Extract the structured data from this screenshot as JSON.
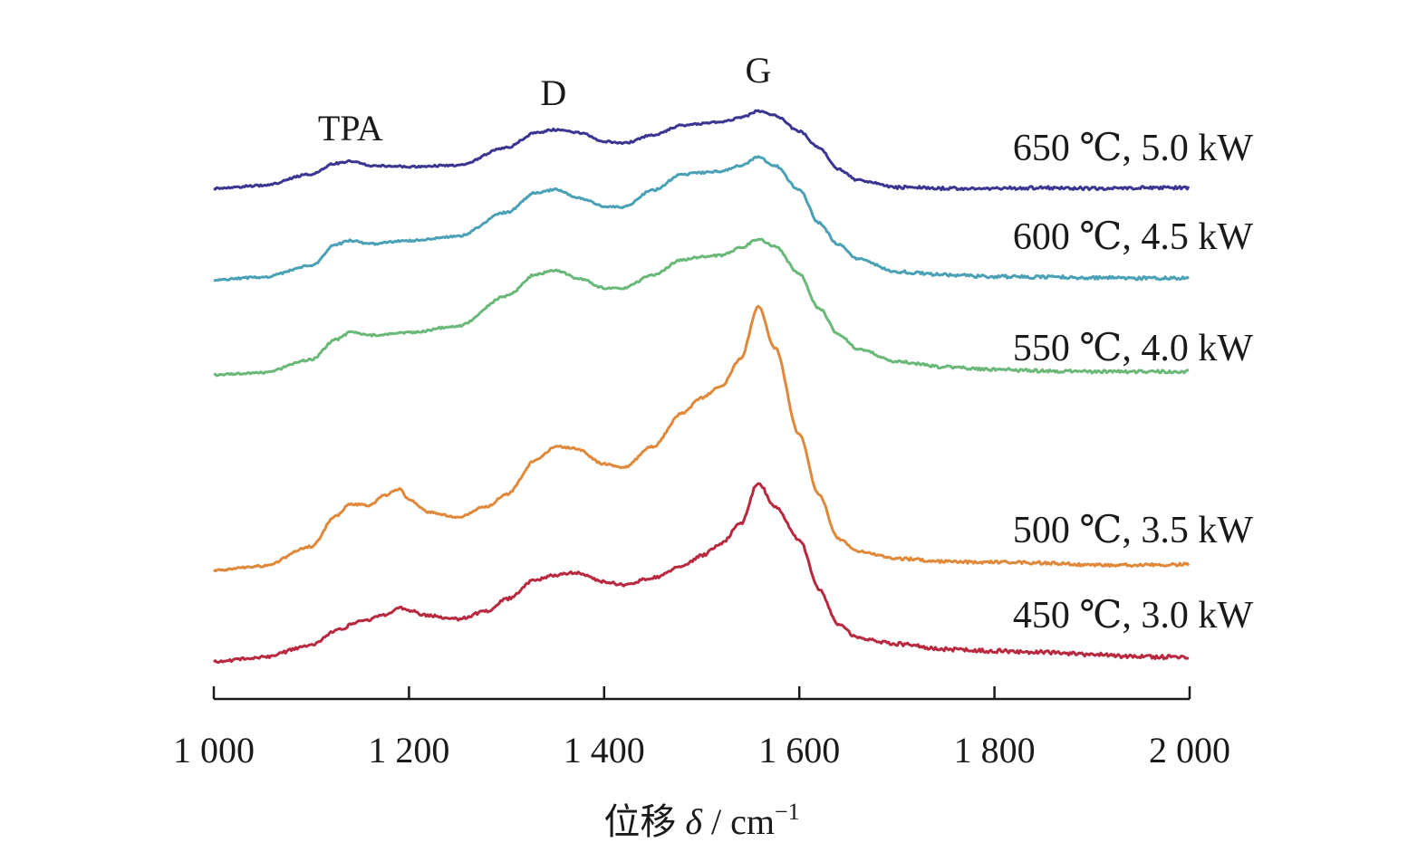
{
  "chart_data": {
    "type": "line",
    "xlabel": "位移 δ / cm⁻¹",
    "xlabel_parts": {
      "prefix": "位移 ",
      "symbol": "δ",
      "unit": " / cm",
      "exponent": "−1"
    },
    "ylabel": "",
    "xlim": [
      1000,
      2000
    ],
    "x_ticks": [
      1000,
      1200,
      1400,
      1600,
      1800,
      2000
    ],
    "x_tick_labels": [
      "1 000",
      "1 200",
      "1 400",
      "1 600",
      "1 800",
      "2 000"
    ],
    "y_axis_visible": false,
    "grid": false,
    "legend": "inline labels at right",
    "peak_annotations": [
      {
        "text": "TPA",
        "x": 1140
      },
      {
        "text": "D",
        "x": 1348
      },
      {
        "text": "G",
        "x": 1558
      }
    ],
    "series": [
      {
        "name": "650 ℃, 5.0 kW",
        "color": "#3b3592",
        "x": [
          1000,
          1050,
          1100,
          1125,
          1140,
          1160,
          1200,
          1250,
          1300,
          1330,
          1350,
          1375,
          1400,
          1420,
          1450,
          1480,
          1500,
          1520,
          1540,
          1558,
          1575,
          1600,
          1620,
          1640,
          1660,
          1700,
          1750,
          1800,
          1850,
          1900,
          1950,
          2000
        ],
        "y": [
          2.0,
          2.5,
          4.6,
          6.6,
          7.0,
          6.2,
          6.0,
          6.2,
          9.5,
          12.2,
          12.8,
          12.2,
          10.6,
          10.3,
          11.8,
          13.6,
          13.9,
          14.2,
          15.0,
          16.2,
          15.4,
          12.5,
          9.5,
          5.5,
          3.5,
          2.2,
          2.0,
          2.0,
          2.1,
          2.0,
          2.1,
          2.1
        ]
      },
      {
        "name": "600 ℃, 4.5 kW",
        "color": "#4aa0b4",
        "x": [
          1000,
          1050,
          1100,
          1125,
          1140,
          1160,
          1200,
          1250,
          1300,
          1330,
          1350,
          1375,
          1400,
          1420,
          1450,
          1480,
          1500,
          1520,
          1540,
          1558,
          1575,
          1600,
          1620,
          1640,
          1660,
          1700,
          1750,
          1800,
          1850,
          1900,
          1950,
          2000
        ],
        "y": [
          2.0,
          2.5,
          4.6,
          8.5,
          9.2,
          8.6,
          9.2,
          10.0,
          14.4,
          18.0,
          18.6,
          17.0,
          15.5,
          15.4,
          18.5,
          21.4,
          21.7,
          22.0,
          23.0,
          24.6,
          23.0,
          18.5,
          12.5,
          8.5,
          5.8,
          3.5,
          2.9,
          2.6,
          2.5,
          2.4,
          2.3,
          2.3
        ]
      },
      {
        "name": "550 ℃, 4.0 kW",
        "color": "#6ab878",
        "x": [
          1000,
          1050,
          1100,
          1125,
          1140,
          1160,
          1200,
          1250,
          1300,
          1330,
          1350,
          1375,
          1400,
          1420,
          1450,
          1480,
          1500,
          1520,
          1540,
          1558,
          1575,
          1600,
          1620,
          1640,
          1660,
          1700,
          1750,
          1800,
          1850,
          1900,
          1950,
          2000
        ],
        "y": [
          2.0,
          2.4,
          4.8,
          8.5,
          9.8,
          9.3,
          9.8,
          11.0,
          16.5,
          20.5,
          21.2,
          19.7,
          18.0,
          18.0,
          20.4,
          23.2,
          23.7,
          24.0,
          25.4,
          27.0,
          25.7,
          20.6,
          14.3,
          9.5,
          6.8,
          4.4,
          3.4,
          3.0,
          2.7,
          2.6,
          2.6,
          2.6
        ]
      },
      {
        "name": "500 ℃, 3.5 kW",
        "color": "#e0883a",
        "x": [
          1000,
          1050,
          1100,
          1125,
          1140,
          1160,
          1175,
          1190,
          1200,
          1220,
          1250,
          1280,
          1300,
          1330,
          1350,
          1370,
          1400,
          1420,
          1450,
          1480,
          1500,
          1520,
          1540,
          1558,
          1575,
          1600,
          1620,
          1640,
          1660,
          1700,
          1750,
          1800,
          1850,
          1900,
          1950,
          2000
        ],
        "y": [
          2.0,
          2.8,
          6.4,
          12.0,
          14.2,
          14.0,
          15.8,
          17.0,
          15.0,
          12.7,
          11.8,
          13.8,
          16.0,
          22.3,
          24.8,
          24.5,
          21.6,
          21.0,
          24.8,
          31.0,
          33.8,
          35.9,
          41.0,
          50.6,
          43.0,
          27.0,
          16.0,
          7.8,
          5.5,
          4.2,
          3.6,
          3.5,
          3.4,
          3.0,
          3.0,
          3.1
        ]
      },
      {
        "name": "450 ℃, 3.0 kW",
        "color": "#b8283e",
        "x": [
          1000,
          1050,
          1100,
          1125,
          1150,
          1175,
          1190,
          1200,
          1220,
          1250,
          1280,
          1300,
          1330,
          1350,
          1370,
          1400,
          1420,
          1450,
          1480,
          1500,
          1520,
          1540,
          1558,
          1575,
          1600,
          1620,
          1640,
          1660,
          1700,
          1750,
          1800,
          1850,
          1900,
          1950,
          2000
        ],
        "y": [
          2.0,
          2.9,
          5.0,
          7.8,
          9.4,
          10.6,
          12.1,
          11.4,
          10.5,
          9.9,
          11.3,
          13.6,
          17.1,
          18.0,
          18.4,
          16.8,
          16.2,
          17.5,
          19.6,
          21.6,
          23.8,
          27.4,
          35.0,
          30.5,
          24.5,
          15.5,
          8.8,
          6.4,
          5.3,
          4.3,
          4.0,
          3.8,
          3.4,
          2.9,
          2.9
        ]
      }
    ]
  }
}
